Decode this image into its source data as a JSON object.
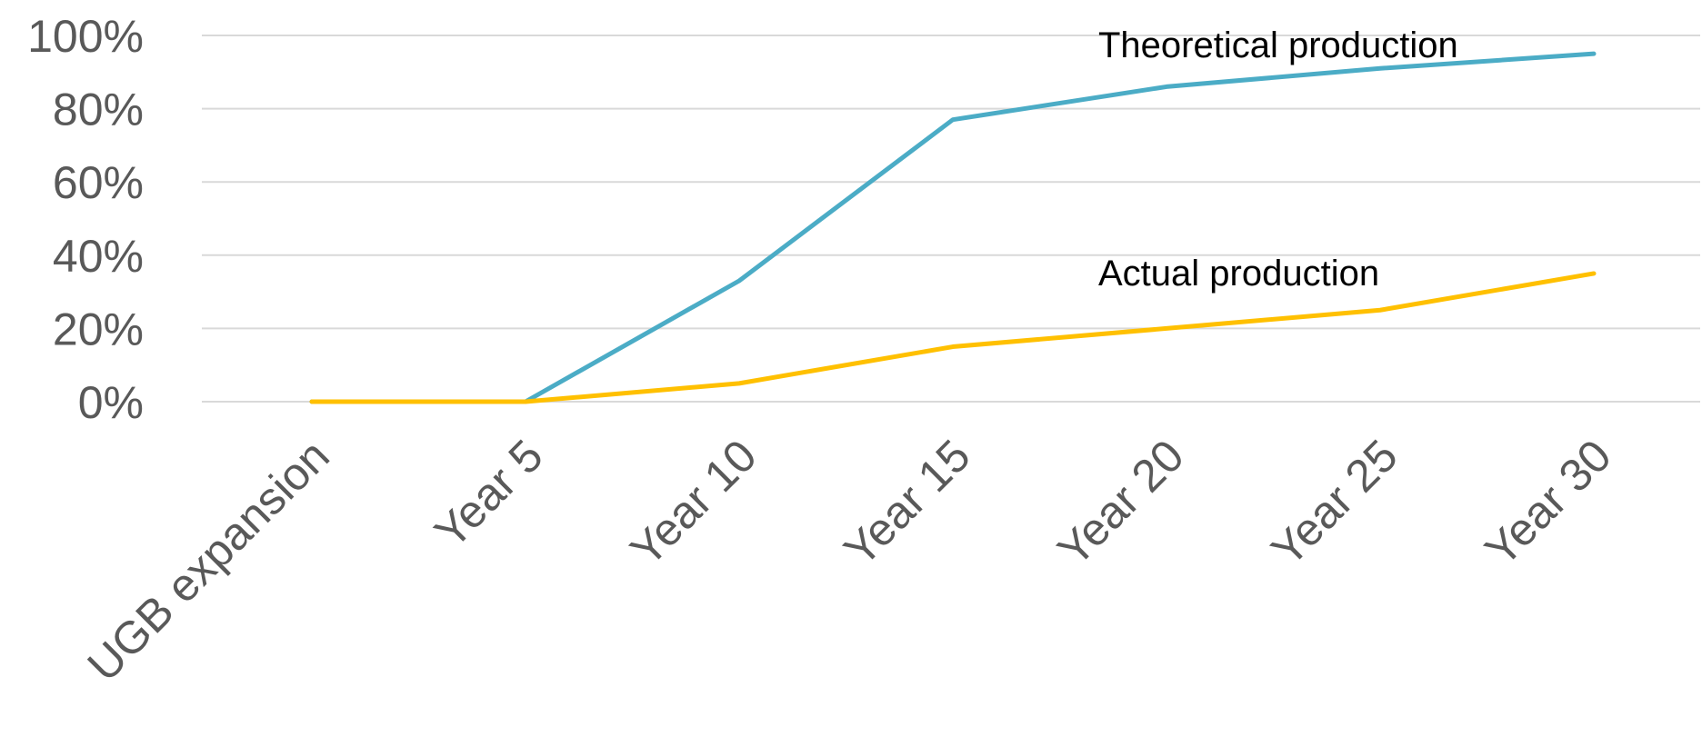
{
  "chart_data": {
    "type": "line",
    "categories": [
      "UGB expansion",
      "Year 5",
      "Year 10",
      "Year 15",
      "Year 20",
      "Year 25",
      "Year 30"
    ],
    "series": [
      {
        "name": "Theoretical production",
        "values": [
          0,
          0,
          33,
          77,
          86,
          91,
          95
        ],
        "color": "#4bacc6"
      },
      {
        "name": "Actual production",
        "values": [
          0,
          0,
          5,
          15,
          20,
          25,
          35
        ],
        "color": "#ffc000"
      }
    ],
    "ylim": [
      0,
      100
    ],
    "yticks": [
      "0%",
      "20%",
      "40%",
      "60%",
      "80%",
      "100%"
    ],
    "grid": true,
    "legend": "inline labels"
  }
}
